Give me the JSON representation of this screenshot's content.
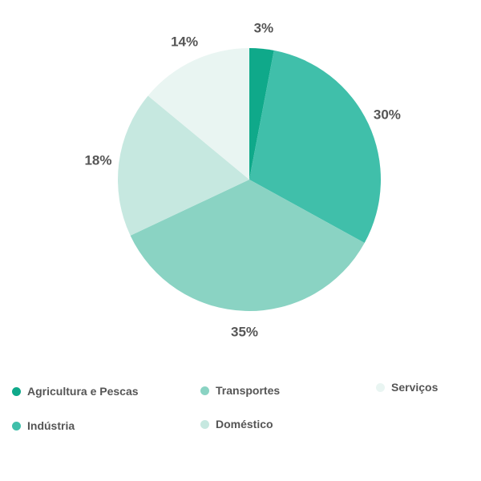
{
  "chart_data": {
    "type": "pie",
    "title": "",
    "legend_position": "bottom",
    "slices": [
      {
        "name": "Agricultura e Pescas",
        "value": 3,
        "label": "3%",
        "color": "#0fa98a"
      },
      {
        "name": "Indústria",
        "value": 30,
        "label": "30%",
        "color": "#40bfaa"
      },
      {
        "name": "Transportes",
        "value": 35,
        "label": "35%",
        "color": "#8ad3c3"
      },
      {
        "name": "Doméstico",
        "value": 18,
        "label": "18%",
        "color": "#c6e8e0"
      },
      {
        "name": "Serviços",
        "value": 14,
        "label": "14%",
        "color": "#e9f5f2"
      }
    ]
  }
}
